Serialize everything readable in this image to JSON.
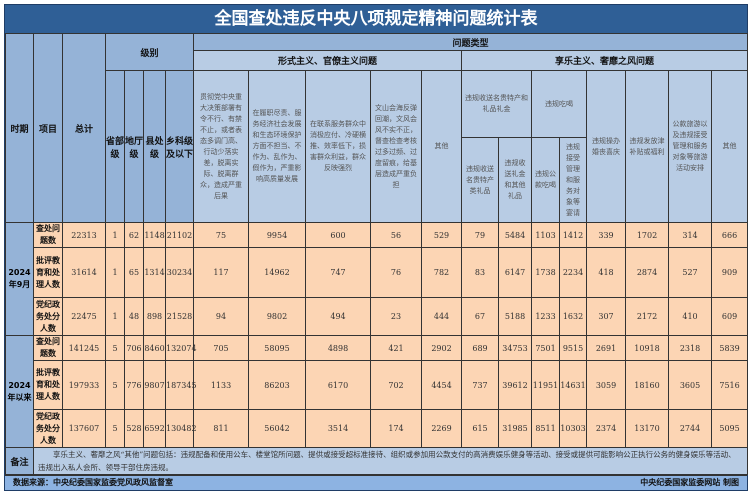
{
  "title": "全国查处违反中央八项规定精神问题统计表",
  "headers": {
    "period": "时期",
    "item": "项目",
    "total": "总计",
    "level": "级别",
    "problem_type": "问题类型",
    "levels": [
      "省部级",
      "地厅级",
      "县处级",
      "乡科级及以下"
    ],
    "formalism": "形式主义、官僚主义问题",
    "formalism_cols": [
      "贯彻党中央重大决策部署有令不行、有禁不止，或者表态多调门高、行动少落实差，脱离实际、脱离群众，造成严重后果",
      "在履职尽责、服务经济社会发展和生态环境保护方面不担当、不作为、乱作为、假作为，严重影响高质量发展",
      "在联系服务群众中消极应付、冷硬横推、效率低下，损害群众利益，群众反映强烈",
      "文山会海反弹回潮，文风会风不实不正，督查检查考核过多过频、过度留痕，给基层造成严重负担",
      "其他"
    ],
    "hedonism": "享乐主义、奢靡之风问题",
    "gift_group": "违规收送名贵特产和礼品礼金",
    "gift_cols": [
      "违规收送名贵特产类礼品",
      "违规收送礼金和其他礼品"
    ],
    "dining_group": "违规吃喝",
    "dining_cols": [
      "违规公款吃喝",
      "违规接受管理和服务对象等宴请"
    ],
    "hedonism_cols": [
      "违规操办婚丧喜庆",
      "违规发放津补贴或福利",
      "公款旅游以及违规接受管理和服务对象等旅游活动安排",
      "其他"
    ]
  },
  "periods": [
    {
      "label": "2024年9月",
      "rows": [
        {
          "item": "查处问题数",
          "values": [
            "22313",
            "1",
            "62",
            "1148",
            "21102",
            "75",
            "9954",
            "600",
            "56",
            "529",
            "79",
            "5484",
            "1103",
            "1412",
            "339",
            "1702",
            "314",
            "666"
          ]
        },
        {
          "item": "批评教育和处理人数",
          "values": [
            "31614",
            "1",
            "65",
            "1314",
            "30234",
            "117",
            "14962",
            "747",
            "76",
            "782",
            "83",
            "6147",
            "1738",
            "2234",
            "418",
            "2874",
            "527",
            "909"
          ]
        },
        {
          "item": "党纪政务处分人数",
          "values": [
            "22475",
            "1",
            "48",
            "898",
            "21528",
            "94",
            "9802",
            "494",
            "23",
            "444",
            "67",
            "5188",
            "1233",
            "1632",
            "307",
            "2172",
            "410",
            "609"
          ]
        }
      ]
    },
    {
      "label": "2024年以来",
      "rows": [
        {
          "item": "查处问题数",
          "values": [
            "141245",
            "5",
            "706",
            "8460",
            "132074",
            "705",
            "58095",
            "4898",
            "421",
            "2902",
            "689",
            "34753",
            "7501",
            "9515",
            "2691",
            "10918",
            "2318",
            "5839"
          ]
        },
        {
          "item": "批评教育和处理人数",
          "values": [
            "197933",
            "5",
            "776",
            "9807",
            "187345",
            "1133",
            "86203",
            "6170",
            "702",
            "4454",
            "737",
            "39612",
            "11951",
            "14631",
            "3059",
            "18160",
            "3605",
            "7516"
          ]
        },
        {
          "item": "党纪政务处分人数",
          "values": [
            "137607",
            "5",
            "528",
            "6592",
            "130482",
            "811",
            "56042",
            "3514",
            "174",
            "2269",
            "615",
            "31985",
            "8511",
            "10303",
            "2374",
            "13170",
            "2744",
            "5095"
          ]
        }
      ]
    }
  ],
  "note": {
    "label": "备注",
    "text": "享乐主义、奢靡之风“其他”问题包括：违规配备和使用公车、楼堂馆所问题、提供或接受超标准接待、组织或参加用公款支付的高消费娱乐健身等活动、接受或提供可能影响公正执行公务的健身娱乐等活动、违规出入私人会所、领导干部住房违规。"
  },
  "footer": {
    "source": "数据来源：中央纪委国家监委党风政风监督室",
    "credit": "中央纪委国家监委网站 制图"
  },
  "colors": {
    "title_bg": "#2f5f96",
    "header_bg": "#b8cce4",
    "data_bg": "#fcd5b4"
  }
}
